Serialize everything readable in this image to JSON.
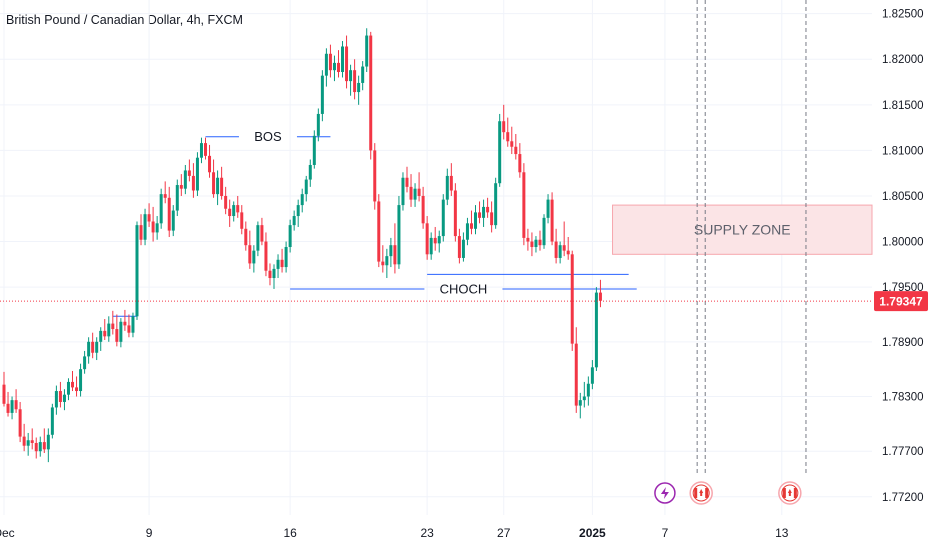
{
  "header": {
    "title": "British Pound / Canadian Dollar, 4h, FXCM"
  },
  "colors": {
    "up": "#089981",
    "down": "#f23645",
    "line": "#2962ff",
    "zone_fill": "#fbe4e6",
    "zone_border": "#f7a6ad",
    "price_tag": "#f23645",
    "axis_text": "#131722",
    "grid": "#f0f3fa"
  },
  "chart_data": {
    "type": "candlestick",
    "symbol": "British Pound / Canadian Dollar",
    "timeframe": "4h",
    "source": "FXCM",
    "ylim": [
      1.77,
      1.8265
    ],
    "y_ticks": [
      "1.82500",
      "1.82000",
      "1.81500",
      "1.81000",
      "1.80500",
      "1.80000",
      "1.79500",
      "1.78900",
      "1.78300",
      "1.77700",
      "1.77200"
    ],
    "x_ticks": [
      {
        "label": "Dec",
        "bar": 0
      },
      {
        "label": "9",
        "bar": 36
      },
      {
        "label": "16",
        "bar": 71
      },
      {
        "label": "23",
        "bar": 105
      },
      {
        "label": "27",
        "bar": 124
      },
      {
        "label": "2025",
        "bar": 146
      },
      {
        "label": "7",
        "bar": 164
      },
      {
        "label": "13",
        "bar": 193
      }
    ],
    "current_price": "1.79347",
    "current_price_value": 1.79347,
    "candles": [
      [
        1.7843,
        1.7857,
        1.7819,
        1.7822
      ],
      [
        1.7822,
        1.7835,
        1.7808,
        1.7812
      ],
      [
        1.7812,
        1.783,
        1.7805,
        1.7826
      ],
      [
        1.7826,
        1.7838,
        1.7812,
        1.7816
      ],
      [
        1.7816,
        1.7824,
        1.778,
        1.7786
      ],
      [
        1.7786,
        1.78,
        1.777,
        1.7776
      ],
      [
        1.7776,
        1.779,
        1.7765,
        1.7782
      ],
      [
        1.7782,
        1.7795,
        1.7772,
        1.7779
      ],
      [
        1.7779,
        1.7785,
        1.7762,
        1.777
      ],
      [
        1.777,
        1.7786,
        1.7764,
        1.778
      ],
      [
        1.778,
        1.7795,
        1.7768,
        1.7772
      ],
      [
        1.7772,
        1.7795,
        1.7758,
        1.7788
      ],
      [
        1.7788,
        1.7822,
        1.7784,
        1.7818
      ],
      [
        1.7818,
        1.7842,
        1.781,
        1.7836
      ],
      [
        1.7836,
        1.7846,
        1.7818,
        1.7824
      ],
      [
        1.7824,
        1.7838,
        1.7815,
        1.7832
      ],
      [
        1.7832,
        1.785,
        1.7826,
        1.7846
      ],
      [
        1.7846,
        1.7858,
        1.7836,
        1.784
      ],
      [
        1.784,
        1.7852,
        1.783,
        1.7836
      ],
      [
        1.7836,
        1.7866,
        1.783,
        1.786
      ],
      [
        1.786,
        1.788,
        1.7855,
        1.7874
      ],
      [
        1.7874,
        1.7895,
        1.7866,
        1.789
      ],
      [
        1.789,
        1.79,
        1.7872,
        1.7878
      ],
      [
        1.7878,
        1.7895,
        1.787,
        1.789
      ],
      [
        1.789,
        1.7906,
        1.788,
        1.7902
      ],
      [
        1.7902,
        1.7915,
        1.7892,
        1.7896
      ],
      [
        1.7896,
        1.7918,
        1.789,
        1.791
      ],
      [
        1.791,
        1.7924,
        1.7898,
        1.7904
      ],
      [
        1.7904,
        1.792,
        1.7885,
        1.789
      ],
      [
        1.789,
        1.7916,
        1.7884,
        1.7912
      ],
      [
        1.7912,
        1.7925,
        1.7902,
        1.7908
      ],
      [
        1.7908,
        1.792,
        1.7895,
        1.79
      ],
      [
        1.79,
        1.7922,
        1.7895,
        1.7918
      ],
      [
        1.7918,
        1.8022,
        1.7914,
        1.8018
      ],
      [
        1.8018,
        1.803,
        1.7996,
        1.8002
      ],
      [
        1.8002,
        1.8036,
        1.7996,
        1.803
      ],
      [
        1.803,
        1.8042,
        1.8016,
        1.8022
      ],
      [
        1.8022,
        1.8038,
        1.8,
        1.801
      ],
      [
        1.801,
        1.8028,
        1.8002,
        1.802
      ],
      [
        1.802,
        1.8058,
        1.8014,
        1.8052
      ],
      [
        1.8052,
        1.8066,
        1.8042,
        1.8048
      ],
      [
        1.8048,
        1.806,
        1.8005,
        1.8012
      ],
      [
        1.8012,
        1.804,
        1.8006,
        1.8034
      ],
      [
        1.8034,
        1.8068,
        1.8028,
        1.8062
      ],
      [
        1.8062,
        1.8074,
        1.805,
        1.8058
      ],
      [
        1.8058,
        1.8084,
        1.8052,
        1.8078
      ],
      [
        1.8078,
        1.809,
        1.8066,
        1.8072
      ],
      [
        1.8072,
        1.8086,
        1.8048,
        1.8056
      ],
      [
        1.8056,
        1.8098,
        1.805,
        1.8092
      ],
      [
        1.8092,
        1.8114,
        1.8086,
        1.8108
      ],
      [
        1.8108,
        1.8114,
        1.809,
        1.8094
      ],
      [
        1.8094,
        1.8106,
        1.807,
        1.8076
      ],
      [
        1.8076,
        1.809,
        1.8048,
        1.8052
      ],
      [
        1.8052,
        1.8078,
        1.804,
        1.807
      ],
      [
        1.807,
        1.8082,
        1.8046,
        1.805
      ],
      [
        1.805,
        1.806,
        1.803,
        1.8036
      ],
      [
        1.8036,
        1.8046,
        1.8016,
        1.8028
      ],
      [
        1.8028,
        1.8044,
        1.8022,
        1.804
      ],
      [
        1.804,
        1.805,
        1.8026,
        1.8032
      ],
      [
        1.8032,
        1.804,
        1.8008,
        1.8014
      ],
      [
        1.8014,
        1.8022,
        1.799,
        1.7996
      ],
      [
        1.7996,
        1.8012,
        1.797,
        1.7976
      ],
      [
        1.7976,
        1.7996,
        1.7966,
        1.799
      ],
      [
        1.799,
        1.8022,
        1.7984,
        1.8018
      ],
      [
        1.8018,
        1.8026,
        1.7996,
        1.8
      ],
      [
        1.8,
        1.801,
        1.7962,
        1.7968
      ],
      [
        1.7968,
        1.7976,
        1.7952,
        1.796
      ],
      [
        1.796,
        1.7975,
        1.7948,
        1.797
      ],
      [
        1.797,
        1.7986,
        1.796,
        1.798
      ],
      [
        1.798,
        1.7992,
        1.7966,
        1.7972
      ],
      [
        1.7972,
        1.8,
        1.7966,
        1.7994
      ],
      [
        1.7994,
        1.8024,
        1.7988,
        1.8018
      ],
      [
        1.8018,
        1.8034,
        1.8012,
        1.8028
      ],
      [
        1.8028,
        1.8046,
        1.8016,
        1.804
      ],
      [
        1.804,
        1.8058,
        1.8032,
        1.8052
      ],
      [
        1.8052,
        1.8072,
        1.8044,
        1.8068
      ],
      [
        1.8068,
        1.809,
        1.806,
        1.8084
      ],
      [
        1.8084,
        1.8122,
        1.808,
        1.8116
      ],
      [
        1.8116,
        1.8146,
        1.811,
        1.814
      ],
      [
        1.814,
        1.8188,
        1.8132,
        1.8182
      ],
      [
        1.8182,
        1.8212,
        1.817,
        1.8206
      ],
      [
        1.8206,
        1.8216,
        1.818,
        1.8188
      ],
      [
        1.8188,
        1.8204,
        1.8176,
        1.8196
      ],
      [
        1.8196,
        1.821,
        1.818,
        1.8186
      ],
      [
        1.8186,
        1.822,
        1.818,
        1.8214
      ],
      [
        1.8214,
        1.8226,
        1.8168,
        1.8176
      ],
      [
        1.8176,
        1.8194,
        1.816,
        1.8188
      ],
      [
        1.8188,
        1.82,
        1.8156,
        1.8164
      ],
      [
        1.8164,
        1.8182,
        1.815,
        1.8174
      ],
      [
        1.8174,
        1.8198,
        1.8166,
        1.8192
      ],
      [
        1.8192,
        1.8234,
        1.8186,
        1.8226
      ],
      [
        1.8226,
        1.823,
        1.809,
        1.81
      ],
      [
        1.81,
        1.8108,
        1.8035,
        1.8044
      ],
      [
        1.8044,
        1.8052,
        1.7972,
        1.7978
      ],
      [
        1.7978,
        1.7996,
        1.7966,
        1.7974
      ],
      [
        1.7974,
        1.7992,
        1.796,
        1.7984
      ],
      [
        1.7984,
        1.8004,
        1.7972,
        1.7996
      ],
      [
        1.7996,
        1.802,
        1.7965,
        1.7975
      ],
      [
        1.7975,
        1.805,
        1.797,
        1.804
      ],
      [
        1.804,
        1.8076,
        1.8034,
        1.807
      ],
      [
        1.807,
        1.8082,
        1.8054,
        1.806
      ],
      [
        1.806,
        1.8074,
        1.8038,
        1.8046
      ],
      [
        1.8046,
        1.8064,
        1.8038,
        1.8058
      ],
      [
        1.8058,
        1.8076,
        1.8044,
        1.805
      ],
      [
        1.805,
        1.806,
        1.8014,
        1.802
      ],
      [
        1.802,
        1.8028,
        1.798,
        1.7986
      ],
      [
        1.7986,
        1.801,
        1.798,
        1.8004
      ],
      [
        1.8004,
        1.8016,
        1.799,
        1.7998
      ],
      [
        1.7998,
        1.8012,
        1.7988,
        1.8006
      ],
      [
        1.8006,
        1.8052,
        1.8,
        1.8046
      ],
      [
        1.8046,
        1.808,
        1.804,
        1.8072
      ],
      [
        1.8072,
        1.8086,
        1.805,
        1.8056
      ],
      [
        1.8056,
        1.8064,
        1.8,
        1.8006
      ],
      [
        1.8006,
        1.8014,
        1.7976,
        1.7982
      ],
      [
        1.7982,
        1.801,
        1.7978,
        1.8002
      ],
      [
        1.8002,
        1.8026,
        1.7996,
        1.802
      ],
      [
        1.802,
        1.8034,
        1.8008,
        1.8014
      ],
      [
        1.8014,
        1.804,
        1.8008,
        1.8032
      ],
      [
        1.8032,
        1.8044,
        1.802,
        1.8026
      ],
      [
        1.8026,
        1.8046,
        1.8016,
        1.8038
      ],
      [
        1.8038,
        1.8048,
        1.8026,
        1.8032
      ],
      [
        1.8032,
        1.8044,
        1.801,
        1.8018
      ],
      [
        1.8018,
        1.807,
        1.8014,
        1.8064
      ],
      [
        1.8064,
        1.814,
        1.806,
        1.8132
      ],
      [
        1.8132,
        1.815,
        1.8112,
        1.812
      ],
      [
        1.812,
        1.8136,
        1.8104,
        1.811
      ],
      [
        1.811,
        1.8126,
        1.8096,
        1.8104
      ],
      [
        1.8104,
        1.8118,
        1.809,
        1.8096
      ],
      [
        1.8096,
        1.8108,
        1.807,
        1.8076
      ],
      [
        1.8076,
        1.8086,
        1.7996,
        1.8004
      ],
      [
        1.8004,
        1.8014,
        1.799,
        1.8
      ],
      [
        1.8,
        1.801,
        1.7984,
        1.7994
      ],
      [
        1.7994,
        1.8006,
        1.7988,
        1.8002
      ],
      [
        1.8002,
        1.8012,
        1.799,
        1.7996
      ],
      [
        1.7996,
        1.803,
        1.7992,
        1.8026
      ],
      [
        1.8026,
        1.8052,
        1.802,
        1.8046
      ],
      [
        1.8046,
        1.8054,
        1.7996,
        1.8
      ],
      [
        1.8,
        1.8014,
        1.7976,
        1.7982
      ],
      [
        1.7982,
        1.8,
        1.7976,
        1.7996
      ],
      [
        1.7996,
        1.8022,
        1.7984,
        1.799
      ],
      [
        1.799,
        1.8005,
        1.798,
        1.7986
      ],
      [
        1.7986,
        1.799,
        1.788,
        1.7888
      ],
      [
        1.7888,
        1.7906,
        1.7812,
        1.782
      ],
      [
        1.782,
        1.7834,
        1.7806,
        1.7826
      ],
      [
        1.7826,
        1.7846,
        1.7818,
        1.783
      ],
      [
        1.783,
        1.7852,
        1.782,
        1.7844
      ],
      [
        1.7844,
        1.787,
        1.7838,
        1.7862
      ],
      [
        1.7862,
        1.795,
        1.7858,
        1.7944
      ],
      [
        1.7944,
        1.7958,
        1.7928,
        1.7935
      ]
    ],
    "annotations": {
      "horizontal_lines": [
        {
          "name": "bos-line",
          "label": "BOS",
          "price": 1.8115,
          "from_bar": 50,
          "to_bar": 81
        },
        {
          "name": "choch-line",
          "label": "CHOCH",
          "price": 1.7948,
          "from_bar": 71,
          "to_bar": 157
        },
        {
          "name": "choch-upper-line",
          "label": "",
          "price": 1.7964,
          "from_bar": 105,
          "to_bar": 155
        },
        {
          "name": "previous-high-line",
          "label": "",
          "price": 1.7918,
          "from_bar": 27,
          "to_bar": 33
        }
      ],
      "zone": {
        "label": "SUPPLY ZONE",
        "top": 1.804,
        "bottom": 1.7986,
        "from_bar": 151
      },
      "vertical_dashed_lines_bars": [
        172,
        174,
        199
      ]
    },
    "event_icons": [
      {
        "name": "lightning-event-icon",
        "symbol": "⚡",
        "bar": 164
      },
      {
        "name": "canada-flag-event-icon",
        "symbol": "🍁",
        "bar": 173
      },
      {
        "name": "canada-flag-event-icon-2",
        "symbol": "🍁",
        "bar": 195
      }
    ]
  }
}
